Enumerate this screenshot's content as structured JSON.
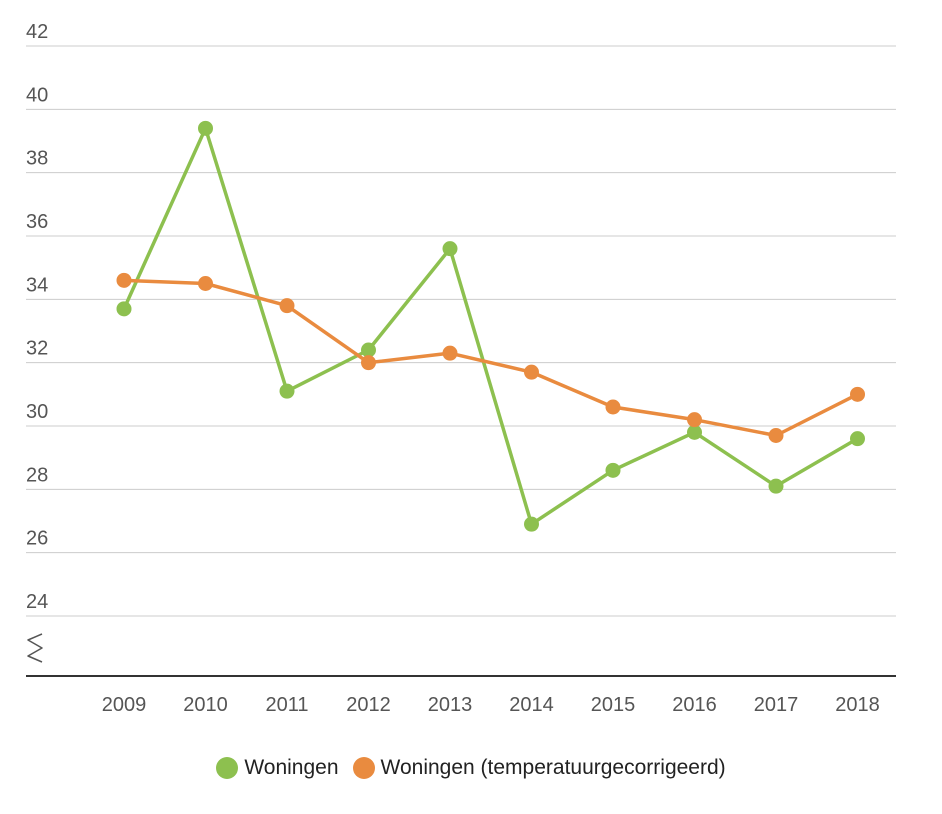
{
  "chart_data": {
    "type": "line",
    "categories": [
      "2009",
      "2010",
      "2011",
      "2012",
      "2013",
      "2014",
      "2015",
      "2016",
      "2017",
      "2018"
    ],
    "series": [
      {
        "name": "Woningen",
        "color": "#8dc04f",
        "values": [
          33.7,
          39.4,
          31.1,
          32.4,
          35.6,
          26.9,
          28.6,
          29.8,
          28.1,
          29.6
        ]
      },
      {
        "name": "Woningen (temperatuurgecorrigeerd)",
        "color": "#e98b3f",
        "values": [
          34.6,
          34.5,
          33.8,
          32.0,
          32.3,
          31.7,
          30.6,
          30.2,
          29.7,
          31.0
        ]
      }
    ],
    "yticks": [
      "42",
      "40",
      "38",
      "36",
      "34",
      "32",
      "30",
      "28",
      "26",
      "24"
    ],
    "ylim": [
      24,
      42
    ],
    "axis_break": true,
    "grid": true,
    "legend_position": "bottom"
  }
}
